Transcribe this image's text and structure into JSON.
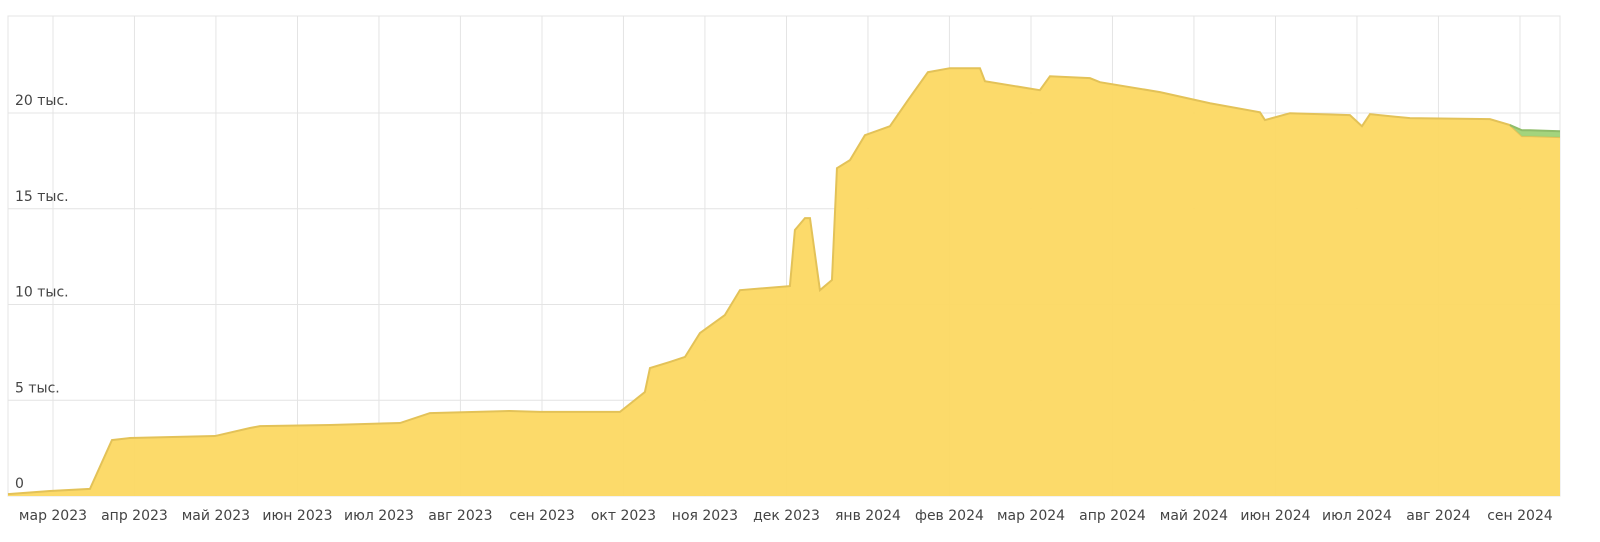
{
  "chart_data": {
    "type": "area",
    "x": [
      2023.1207,
      2023.1636,
      2023.2045,
      2023.227,
      2023.2454,
      2023.3323,
      2023.3681,
      2023.3783,
      2023.4499,
      2023.5215,
      2023.5521,
      2023.6339,
      2023.6646,
      2023.7464,
      2023.7719,
      2023.7771,
      2023.7975,
      2023.8129,
      2023.8282,
      2023.8537,
      2023.8691,
      2023.9202,
      2023.9253,
      2023.9356,
      2023.9407,
      2023.9509,
      2023.9632,
      2023.9683,
      2023.9816,
      2023.9969,
      2024.0225,
      2024.0409,
      2024.0613,
      2024.0838,
      2024.1145,
      2024.1196,
      2024.1758,
      2024.1861,
      2024.227,
      2024.2372,
      2024.2986,
      2024.3497,
      2024.4008,
      2024.4059,
      2024.4315,
      2024.4928,
      2024.5051,
      2024.5133,
      2024.5542,
      2024.636,
      2024.6564,
      2024.6687,
      2024.6769,
      2024.7076
    ],
    "series": [
      {
        "color": "#fcd862",
        "values": [
          100,
          260,
          370,
          2920,
          3030,
          3130,
          3550,
          3650,
          3710,
          3810,
          4330,
          4440,
          4390,
          4390,
          5430,
          6680,
          7000,
          7260,
          8510,
          9450,
          10750,
          10960,
          13890,
          14510,
          14510,
          10750,
          11280,
          17120,
          17540,
          18840,
          19310,
          20670,
          22130,
          22340,
          22340,
          21660,
          21190,
          21920,
          21820,
          21610,
          21090,
          20510,
          20040,
          19630,
          19990,
          19890,
          19310,
          19940,
          19730,
          19680,
          19370,
          18790,
          18790,
          18740
        ]
      },
      {
        "color": "#9fd276",
        "values": [
          null,
          null,
          null,
          null,
          null,
          null,
          null,
          null,
          null,
          null,
          null,
          null,
          null,
          null,
          null,
          null,
          null,
          null,
          null,
          null,
          null,
          null,
          null,
          null,
          null,
          null,
          null,
          null,
          null,
          null,
          null,
          null,
          null,
          null,
          null,
          null,
          null,
          null,
          null,
          null,
          null,
          null,
          null,
          null,
          null,
          null,
          null,
          null,
          null,
          null,
          0,
          310,
          310,
          310
        ]
      }
    ],
    "xlim": [
      2023.1207,
      2024.7076
    ],
    "xticks": [
      {
        "value": 2023.1667,
        "label": "мар 2023"
      },
      {
        "value": 2023.25,
        "label": "апр 2023"
      },
      {
        "value": 2023.3333,
        "label": "май 2023"
      },
      {
        "value": 2023.4167,
        "label": "июн 2023"
      },
      {
        "value": 2023.5,
        "label": "июл 2023"
      },
      {
        "value": 2023.5833,
        "label": "авг 2023"
      },
      {
        "value": 2023.6667,
        "label": "сен 2023"
      },
      {
        "value": 2023.75,
        "label": "окт 2023"
      },
      {
        "value": 2023.8333,
        "label": "ноя 2023"
      },
      {
        "value": 2023.9167,
        "label": "дек 2023"
      },
      {
        "value": 2024,
        "label": "янв 2024"
      },
      {
        "value": 2024.0833,
        "label": "фев 2024"
      },
      {
        "value": 2024.1667,
        "label": "мар 2024"
      },
      {
        "value": 2024.25,
        "label": "апр 2024"
      },
      {
        "value": 2024.3333,
        "label": "май 2024"
      },
      {
        "value": 2024.4167,
        "label": "июн 2024"
      },
      {
        "value": 2024.5,
        "label": "июл 2024"
      },
      {
        "value": 2024.5833,
        "label": "авг 2024"
      },
      {
        "value": 2024.6667,
        "label": "сен 2024"
      }
    ],
    "ylim": [
      0,
      25066
    ],
    "yticks": [
      0,
      {
        "value": 5000,
        "label": "5 тыс."
      },
      {
        "value": 10000,
        "label": "10 тыс."
      },
      {
        "value": 15000,
        "label": "15 тыс."
      },
      {
        "value": 20000,
        "label": "20 тыс."
      }
    ],
    "grid": true,
    "stacked": true
  }
}
